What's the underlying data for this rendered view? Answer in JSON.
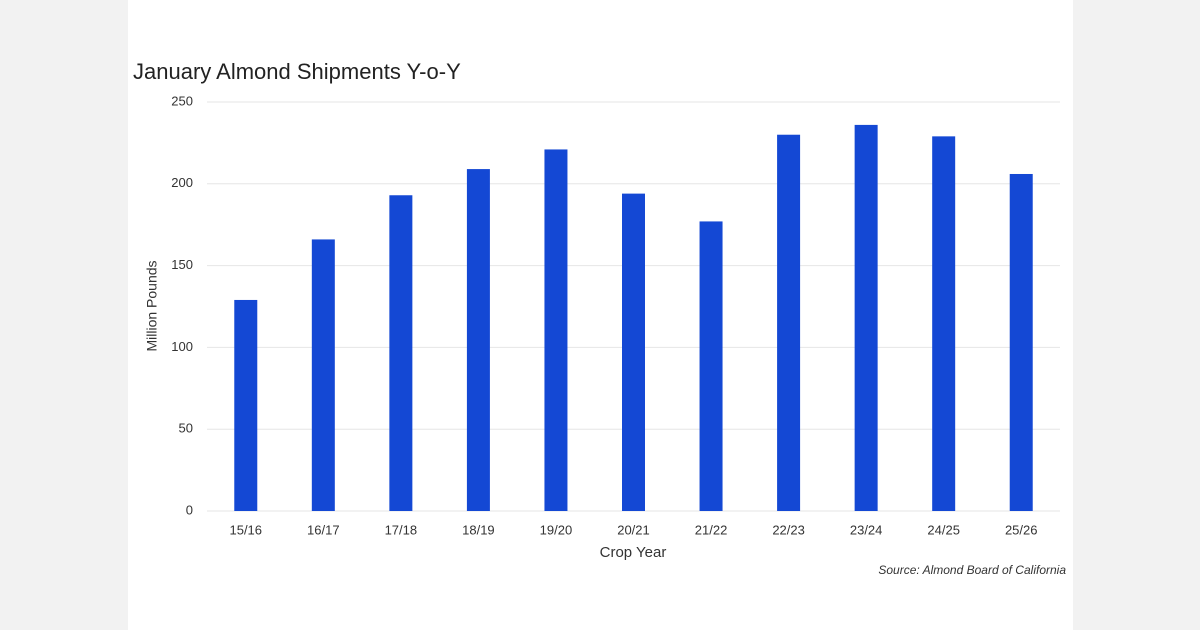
{
  "chart_data": {
    "type": "bar",
    "title": "January Almond Shipments Y-o-Y",
    "x_label": "Crop Year",
    "y_label": "Million Pounds",
    "source": "Source: Almond Board of California",
    "categories": [
      "15/16",
      "16/17",
      "17/18",
      "18/19",
      "19/20",
      "20/21",
      "21/22",
      "22/23",
      "23/24",
      "24/25",
      "25/26"
    ],
    "values": [
      129,
      166,
      193,
      209,
      221,
      194,
      177,
      230,
      236,
      229,
      206
    ],
    "color": "#1448d4",
    "ylim": [
      0,
      250
    ],
    "yticks": [
      0,
      50,
      100,
      150,
      200,
      250
    ],
    "grid": true
  }
}
